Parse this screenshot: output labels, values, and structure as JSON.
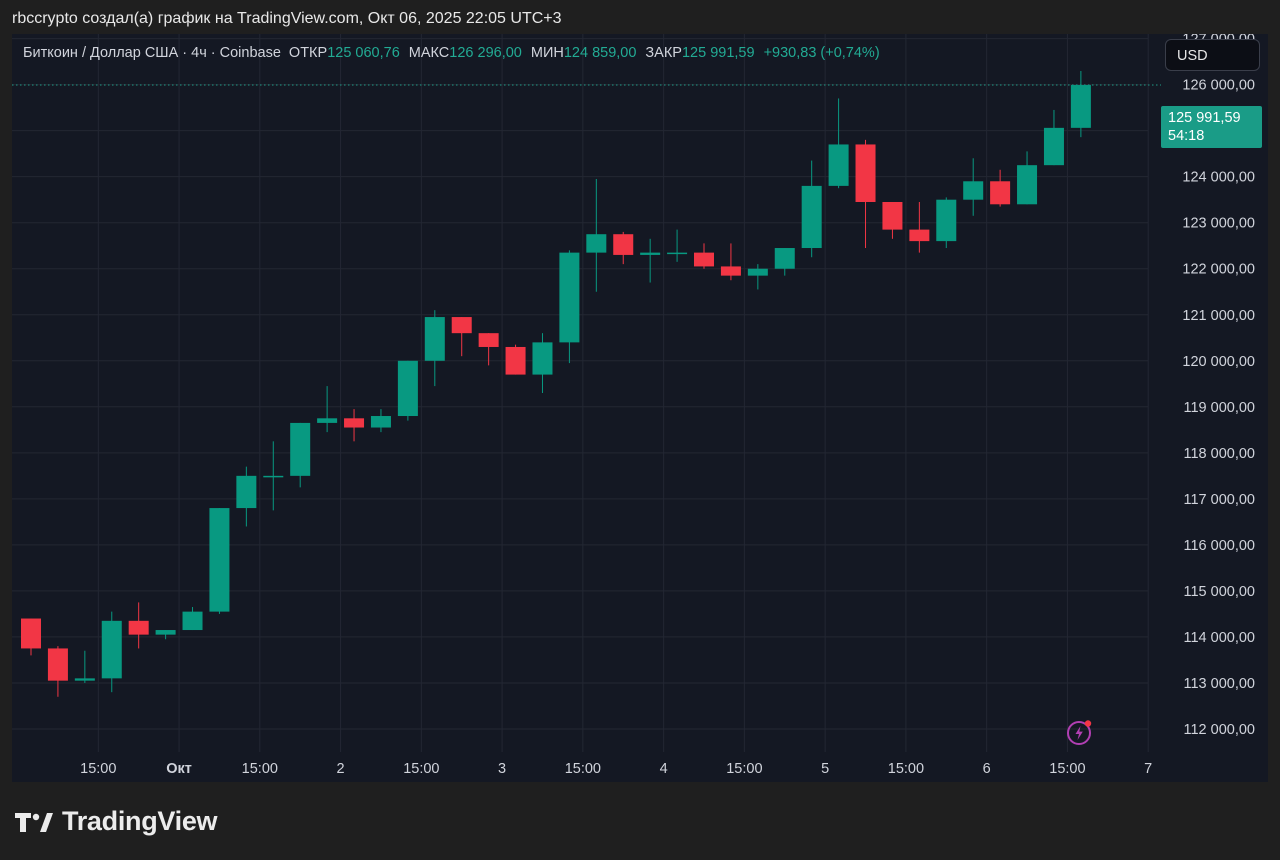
{
  "caption": "rbccrypto создал(а) график на TradingView.com, Окт 06, 2025 22:05 UTC+3",
  "legend": {
    "symbol": "Биткоин / Доллар США · 4ч · Coinbase",
    "open_label": "ОТКР",
    "open_value": "125 060,76",
    "high_label": "МАКС",
    "high_value": "126 296,00",
    "low_label": "МИН",
    "low_value": "124 859,00",
    "close_label": "ЗАКР",
    "close_value": "125 991,59",
    "change": "+930,83 (+0,74%)"
  },
  "currency_button": "USD",
  "price_tag": {
    "price": "125 991,59",
    "countdown": "54:18"
  },
  "brand": {
    "name": "TradingView"
  },
  "colors": {
    "up": "#089981",
    "down": "#f23645",
    "background": "#141823",
    "grid": "#232733",
    "axis_text": "#d1d4dc",
    "last_price_line": "#1f9b87"
  },
  "icons": {
    "bolt": "lightning-bolt-icon",
    "logo": "tradingview-logo-icon"
  },
  "chart_data": {
    "type": "candlestick",
    "title": "Биткоин / Доллар США · 4ч · Coinbase",
    "currency": "USD",
    "grid": true,
    "ylim": [
      111500,
      127100
    ],
    "y_ticks": [
      112000,
      113000,
      114000,
      115000,
      116000,
      117000,
      118000,
      119000,
      120000,
      121000,
      122000,
      123000,
      124000,
      125000,
      126000,
      127000
    ],
    "y_tick_labels": [
      "112 000,00",
      "113 000,00",
      "114 000,00",
      "115 000,00",
      "116 000,00",
      "117 000,00",
      "118 000,00",
      "119 000,00",
      "120 000,00",
      "121 000,00",
      "122 000,00",
      "123 000,00",
      "124 000,00",
      "125 000,00",
      "126 000,00",
      "127 000,00"
    ],
    "x_ticks": [
      {
        "label": "15:00",
        "index": 2.5
      },
      {
        "label": "Окт",
        "index": 5.5
      },
      {
        "label": "15:00",
        "index": 8.5
      },
      {
        "label": "2",
        "index": 11.5
      },
      {
        "label": "15:00",
        "index": 14.5
      },
      {
        "label": "3",
        "index": 17.5
      },
      {
        "label": "15:00",
        "index": 20.5
      },
      {
        "label": "4",
        "index": 23.5
      },
      {
        "label": "15:00",
        "index": 26.5
      },
      {
        "label": "5",
        "index": 29.5
      },
      {
        "label": "15:00",
        "index": 32.5
      },
      {
        "label": "6",
        "index": 35.5
      },
      {
        "label": "15:00",
        "index": 38.5
      },
      {
        "label": "7",
        "index": 41.5
      }
    ],
    "last_price": 125991.59,
    "candles": [
      {
        "o": 114400,
        "h": 114400,
        "l": 113600,
        "c": 113750
      },
      {
        "o": 113750,
        "h": 113800,
        "l": 112700,
        "c": 113050
      },
      {
        "o": 113050,
        "h": 113700,
        "l": 113000,
        "c": 113100
      },
      {
        "o": 113100,
        "h": 114550,
        "l": 112800,
        "c": 114350
      },
      {
        "o": 114350,
        "h": 114750,
        "l": 113750,
        "c": 114050
      },
      {
        "o": 114050,
        "h": 114150,
        "l": 113950,
        "c": 114150
      },
      {
        "o": 114150,
        "h": 114650,
        "l": 114150,
        "c": 114550
      },
      {
        "o": 114550,
        "h": 116800,
        "l": 114500,
        "c": 116800
      },
      {
        "o": 116800,
        "h": 117700,
        "l": 116400,
        "c": 117500
      },
      {
        "o": 117500,
        "h": 118250,
        "l": 116750,
        "c": 117500
      },
      {
        "o": 117500,
        "h": 118650,
        "l": 117250,
        "c": 118650
      },
      {
        "o": 118650,
        "h": 119450,
        "l": 118450,
        "c": 118750
      },
      {
        "o": 118750,
        "h": 118950,
        "l": 118250,
        "c": 118550
      },
      {
        "o": 118550,
        "h": 118950,
        "l": 118450,
        "c": 118800
      },
      {
        "o": 118800,
        "h": 120000,
        "l": 118700,
        "c": 120000
      },
      {
        "o": 120000,
        "h": 121100,
        "l": 119450,
        "c": 120950
      },
      {
        "o": 120950,
        "h": 120950,
        "l": 120100,
        "c": 120600
      },
      {
        "o": 120600,
        "h": 120600,
        "l": 119900,
        "c": 120300
      },
      {
        "o": 120300,
        "h": 120350,
        "l": 119700,
        "c": 119700
      },
      {
        "o": 119700,
        "h": 120600,
        "l": 119300,
        "c": 120400
      },
      {
        "o": 120400,
        "h": 122400,
        "l": 119950,
        "c": 122350
      },
      {
        "o": 122350,
        "h": 123950,
        "l": 121500,
        "c": 122750
      },
      {
        "o": 122750,
        "h": 122800,
        "l": 122100,
        "c": 122300
      },
      {
        "o": 122300,
        "h": 122650,
        "l": 121700,
        "c": 122350
      },
      {
        "o": 122350,
        "h": 122850,
        "l": 122150,
        "c": 122350
      },
      {
        "o": 122350,
        "h": 122550,
        "l": 122000,
        "c": 122050
      },
      {
        "o": 122050,
        "h": 122550,
        "l": 121750,
        "c": 121850
      },
      {
        "o": 121850,
        "h": 122100,
        "l": 121550,
        "c": 122000
      },
      {
        "o": 122000,
        "h": 122450,
        "l": 121850,
        "c": 122450
      },
      {
        "o": 122450,
        "h": 124350,
        "l": 122250,
        "c": 123800
      },
      {
        "o": 123800,
        "h": 125700,
        "l": 123750,
        "c": 124700
      },
      {
        "o": 124700,
        "h": 124800,
        "l": 122450,
        "c": 123450
      },
      {
        "o": 123450,
        "h": 123450,
        "l": 122650,
        "c": 122850
      },
      {
        "o": 122850,
        "h": 123450,
        "l": 122350,
        "c": 122600
      },
      {
        "o": 122600,
        "h": 123550,
        "l": 122450,
        "c": 123500
      },
      {
        "o": 123500,
        "h": 124400,
        "l": 123150,
        "c": 123900
      },
      {
        "o": 123900,
        "h": 124150,
        "l": 123350,
        "c": 123400
      },
      {
        "o": 123400,
        "h": 124550,
        "l": 123400,
        "c": 124250
      },
      {
        "o": 124250,
        "h": 125450,
        "l": 124250,
        "c": 125060.76
      },
      {
        "o": 125060.76,
        "h": 126296,
        "l": 124859,
        "c": 125991.59
      }
    ]
  }
}
